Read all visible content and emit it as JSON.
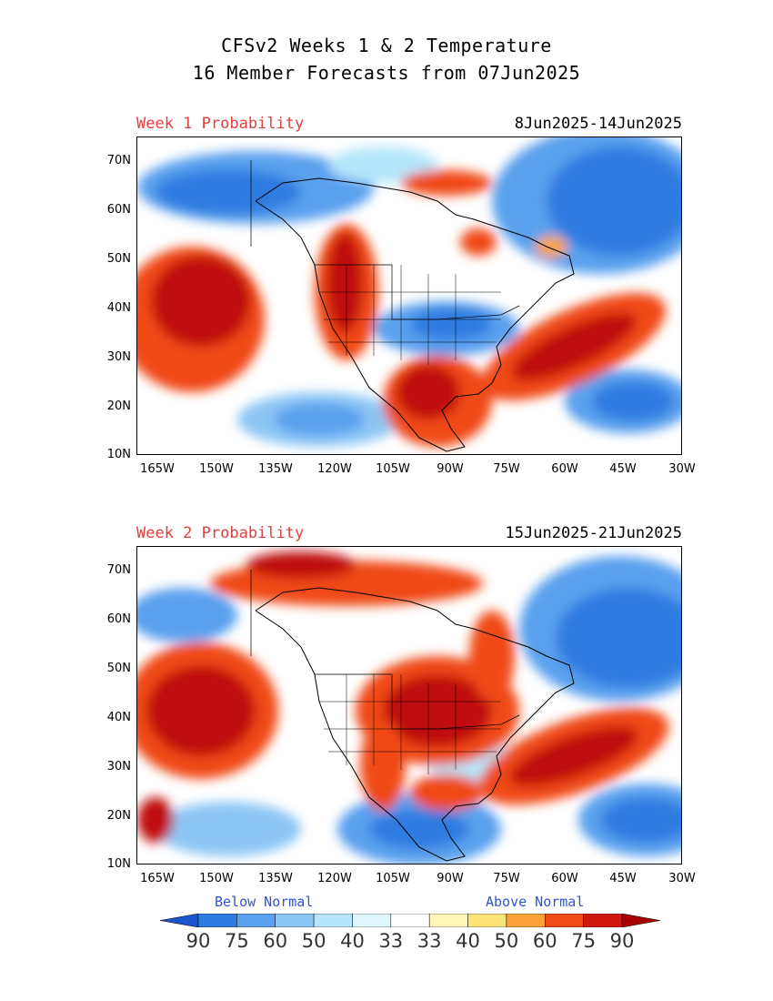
{
  "title": {
    "line1": "CFSv2 Weeks 1 & 2 Temperature",
    "line2": "16 Member Forecasts from 07Jun2025"
  },
  "panels": [
    {
      "label": "Week 1 Probability",
      "dates": "8Jun2025-14Jun2025"
    },
    {
      "label": "Week 2 Probability",
      "dates": "15Jun2025-21Jun2025"
    }
  ],
  "axes": {
    "lat_ticks": [
      "70N",
      "60N",
      "50N",
      "40N",
      "30N",
      "20N",
      "10N"
    ],
    "lon_ticks": [
      "165W",
      "150W",
      "135W",
      "120W",
      "105W",
      "90W",
      "75W",
      "60W",
      "45W",
      "30W"
    ]
  },
  "legend": {
    "below_label": "Below Normal",
    "above_label": "Above Normal",
    "values": [
      "90",
      "75",
      "60",
      "50",
      "40",
      "33",
      "33",
      "40",
      "50",
      "60",
      "75",
      "90"
    ],
    "colors": [
      "#1a55cc",
      "#2e7ce0",
      "#5aa0ee",
      "#8cc6f5",
      "#b6e6fb",
      "#dff6fd",
      "#ffffff",
      "#fff7b8",
      "#fde27a",
      "#fba33a",
      "#f04a18",
      "#d01810",
      "#a80000"
    ]
  },
  "colors": {
    "below_strong": "#2e7ce0",
    "below_med": "#5aa0ee",
    "below_light": "#b6e6fb",
    "above_light": "#fde27a",
    "above_med": "#f04a18",
    "above_strong": "#c01010"
  }
}
